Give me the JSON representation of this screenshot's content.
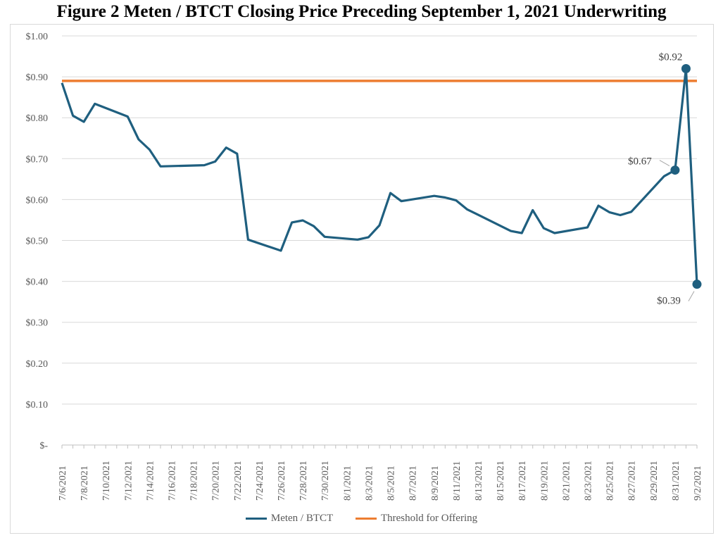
{
  "title": "Figure 2 Meten / BTCT Closing Price Preceding September 1, 2021 Underwriting",
  "chart_data": {
    "type": "line",
    "title": "Figure 2 Meten / BTCT Closing Price Preceding September 1, 2021 Underwriting",
    "xlabel": "",
    "ylabel": "",
    "ylim": [
      0,
      1.0
    ],
    "y_ticks": [
      0,
      0.1,
      0.2,
      0.3,
      0.4,
      0.5,
      0.6,
      0.7,
      0.8,
      0.9,
      1.0
    ],
    "y_tick_labels": [
      "$-",
      "$0.10",
      "$0.20",
      "$0.30",
      "$0.40",
      "$0.50",
      "$0.60",
      "$0.70",
      "$0.80",
      "$0.90",
      "$1.00"
    ],
    "xlim": [
      "2021-07-06",
      "2021-09-02"
    ],
    "x_tick_labels": [
      "7/6/2021",
      "7/8/2021",
      "7/10/2021",
      "7/12/2021",
      "7/14/2021",
      "7/16/2021",
      "7/18/2021",
      "7/20/2021",
      "7/22/2021",
      "7/24/2021",
      "7/26/2021",
      "7/28/2021",
      "7/30/2021",
      "8/1/2021",
      "8/3/2021",
      "8/5/2021",
      "8/7/2021",
      "8/9/2021",
      "8/11/2021",
      "8/13/2021",
      "8/15/2021",
      "8/17/2021",
      "8/19/2021",
      "8/21/2021",
      "8/23/2021",
      "8/25/2021",
      "8/27/2021",
      "8/29/2021",
      "8/31/2021",
      "9/2/2021"
    ],
    "grid": true,
    "legend_position": "bottom",
    "series": [
      {
        "name": "Meten / BTCT",
        "color": "#1f5f7f",
        "points": [
          [
            "2021-07-06",
            0.885
          ],
          [
            "2021-07-07",
            0.805
          ],
          [
            "2021-07-08",
            0.79
          ],
          [
            "2021-07-09",
            0.834
          ],
          [
            "2021-07-12",
            0.803
          ],
          [
            "2021-07-13",
            0.747
          ],
          [
            "2021-07-14",
            0.722
          ],
          [
            "2021-07-15",
            0.681
          ],
          [
            "2021-07-19",
            0.684
          ],
          [
            "2021-07-20",
            0.693
          ],
          [
            "2021-07-21",
            0.727
          ],
          [
            "2021-07-22",
            0.712
          ],
          [
            "2021-07-23",
            0.502
          ],
          [
            "2021-07-26",
            0.475
          ],
          [
            "2021-07-27",
            0.544
          ],
          [
            "2021-07-28",
            0.549
          ],
          [
            "2021-07-29",
            0.535
          ],
          [
            "2021-07-30",
            0.509
          ],
          [
            "2021-08-02",
            0.502
          ],
          [
            "2021-08-03",
            0.508
          ],
          [
            "2021-08-04",
            0.537
          ],
          [
            "2021-08-05",
            0.616
          ],
          [
            "2021-08-06",
            0.596
          ],
          [
            "2021-08-09",
            0.609
          ],
          [
            "2021-08-10",
            0.605
          ],
          [
            "2021-08-11",
            0.598
          ],
          [
            "2021-08-12",
            0.576
          ],
          [
            "2021-08-13",
            0.563
          ],
          [
            "2021-08-16",
            0.523
          ],
          [
            "2021-08-17",
            0.518
          ],
          [
            "2021-08-18",
            0.574
          ],
          [
            "2021-08-19",
            0.53
          ],
          [
            "2021-08-20",
            0.518
          ],
          [
            "2021-08-23",
            0.532
          ],
          [
            "2021-08-24",
            0.585
          ],
          [
            "2021-08-25",
            0.569
          ],
          [
            "2021-08-26",
            0.562
          ],
          [
            "2021-08-27",
            0.57
          ],
          [
            "2021-08-30",
            0.657
          ],
          [
            "2021-08-31",
            0.672
          ],
          [
            "2021-09-01",
            0.92
          ],
          [
            "2021-09-02",
            0.393
          ]
        ],
        "markers": [
          {
            "x": "2021-08-31",
            "y": 0.672,
            "label": "$0.67"
          },
          {
            "x": "2021-09-01",
            "y": 0.92,
            "label": "$0.92"
          },
          {
            "x": "2021-09-02",
            "y": 0.393,
            "label": "$0.39"
          }
        ]
      },
      {
        "name": "Threshold for Offering",
        "color": "#ed7d31",
        "points": [
          [
            "2021-07-06",
            0.89
          ],
          [
            "2021-09-02",
            0.89
          ]
        ]
      }
    ]
  }
}
